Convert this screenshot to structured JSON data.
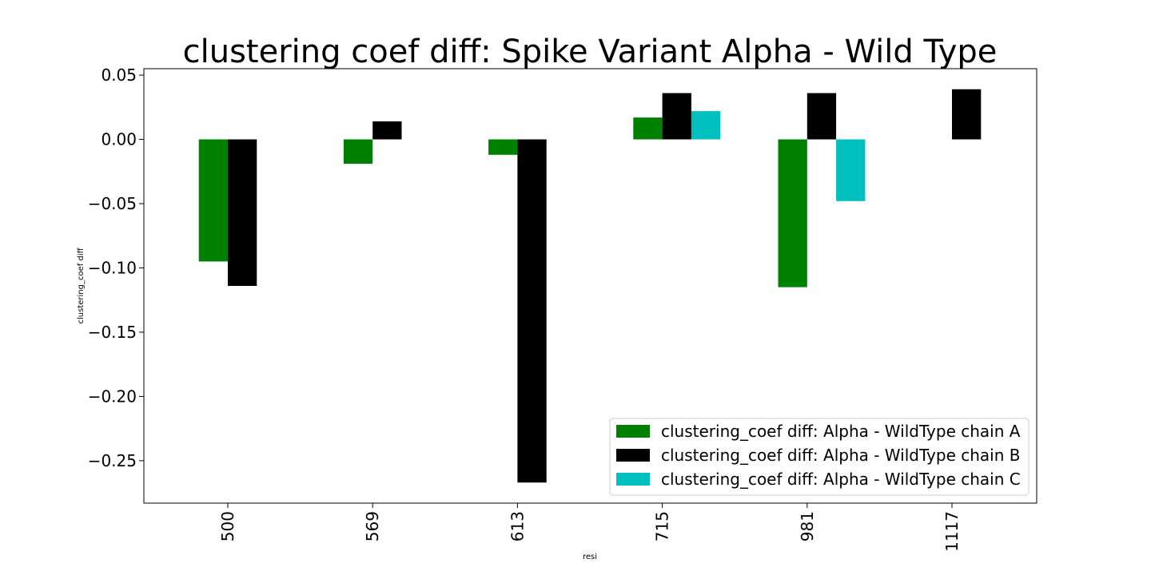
{
  "chart_data": {
    "type": "bar",
    "title": "clustering coef diff: Spike Variant Alpha - Wild Type",
    "xlabel": "resi",
    "ylabel": "clustering_coef diff",
    "categories": [
      "500",
      "569",
      "613",
      "715",
      "981",
      "1117"
    ],
    "series": [
      {
        "name": "clustering_coef diff: Alpha - WildType chain A",
        "color": "#008000",
        "values": [
          -0.095,
          -0.019,
          -0.012,
          0.017,
          -0.115,
          null
        ]
      },
      {
        "name": "clustering_coef diff: Alpha - WildType chain B",
        "color": "#000000",
        "values": [
          -0.114,
          0.014,
          -0.267,
          0.036,
          0.036,
          0.039
        ]
      },
      {
        "name": "clustering_coef diff: Alpha - WildType chain C",
        "color": "#00bfbf",
        "values": [
          null,
          null,
          null,
          0.022,
          -0.048,
          null
        ]
      }
    ],
    "yticks": [
      "0.05",
      "0.00",
      "−0.05",
      "−0.10",
      "−0.15",
      "−0.20",
      "−0.25"
    ],
    "ytick_values": [
      0.05,
      0.0,
      -0.05,
      -0.1,
      -0.15,
      -0.2,
      -0.25
    ],
    "ylim": [
      -0.283,
      0.055
    ],
    "legend_position": "lower-right",
    "grid": false
  }
}
